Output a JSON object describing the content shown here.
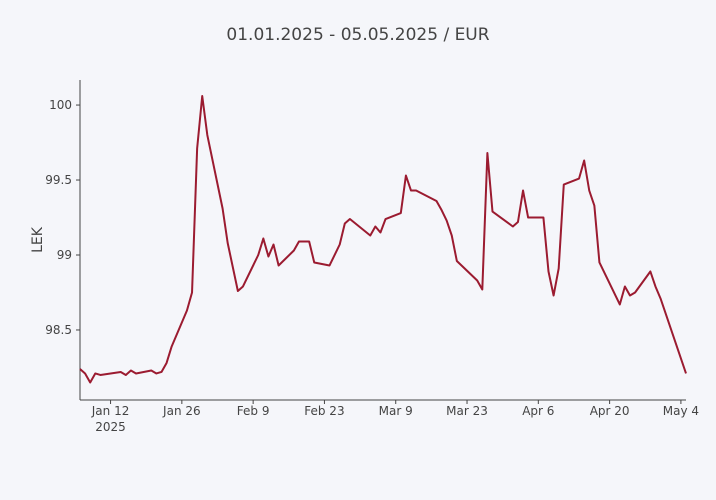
{
  "chart_data": {
    "type": "line",
    "title": "01.01.2025 - 05.05.2025 / EUR",
    "y_label": "LEK",
    "x_year_label": "2025",
    "xlim": [
      "2025-01-06",
      "2025-05-05"
    ],
    "xticks": [
      {
        "value": "2025-01-12",
        "label": "Jan 12"
      },
      {
        "value": "2025-01-26",
        "label": "Jan 26"
      },
      {
        "value": "2025-02-09",
        "label": "Feb 9"
      },
      {
        "value": "2025-02-23",
        "label": "Feb 23"
      },
      {
        "value": "2025-03-09",
        "label": "Mar 9"
      },
      {
        "value": "2025-03-23",
        "label": "Mar 23"
      },
      {
        "value": "2025-04-06",
        "label": "Apr 6"
      },
      {
        "value": "2025-04-20",
        "label": "Apr 20"
      },
      {
        "value": "2025-05-04",
        "label": "May 4"
      }
    ],
    "ylim": [
      98.033,
      100.167
    ],
    "yticks": [
      98.5,
      99,
      99.5,
      100
    ],
    "grid": false,
    "x": [
      "2025-01-06",
      "2025-01-07",
      "2025-01-08",
      "2025-01-09",
      "2025-01-10",
      "2025-01-12",
      "2025-01-14",
      "2025-01-15",
      "2025-01-16",
      "2025-01-17",
      "2025-01-20",
      "2025-01-21",
      "2025-01-22",
      "2025-01-23",
      "2025-01-24",
      "2025-01-27",
      "2025-01-28",
      "2025-01-29",
      "2025-01-30",
      "2025-01-31",
      "2025-02-03",
      "2025-02-04",
      "2025-02-06",
      "2025-02-07",
      "2025-02-10",
      "2025-02-11",
      "2025-02-12",
      "2025-02-13",
      "2025-02-14",
      "2025-02-17",
      "2025-02-18",
      "2025-02-20",
      "2025-02-21",
      "2025-02-24",
      "2025-02-26",
      "2025-02-27",
      "2025-02-28",
      "2025-03-04",
      "2025-03-05",
      "2025-03-06",
      "2025-03-07",
      "2025-03-10",
      "2025-03-11",
      "2025-03-12",
      "2025-03-13",
      "2025-03-17",
      "2025-03-18",
      "2025-03-19",
      "2025-03-20",
      "2025-03-21",
      "2025-03-25",
      "2025-03-26",
      "2025-03-27",
      "2025-03-28",
      "2025-04-01",
      "2025-04-02",
      "2025-04-03",
      "2025-04-04",
      "2025-04-07",
      "2025-04-08",
      "2025-04-09",
      "2025-04-10",
      "2025-04-11",
      "2025-04-14",
      "2025-04-15",
      "2025-04-16",
      "2025-04-17",
      "2025-04-18",
      "2025-04-22",
      "2025-04-23",
      "2025-04-24",
      "2025-04-25",
      "2025-04-28",
      "2025-04-29",
      "2025-04-30",
      "2025-05-05"
    ],
    "series": [
      {
        "name": "EUR",
        "color": "#9b1b30",
        "values": [
          98.24,
          98.21,
          98.15,
          98.21,
          98.2,
          98.21,
          98.22,
          98.2,
          98.23,
          98.21,
          98.23,
          98.21,
          98.22,
          98.28,
          98.39,
          98.63,
          98.75,
          99.71,
          100.06,
          99.8,
          99.31,
          99.08,
          98.76,
          98.79,
          99.0,
          99.11,
          98.99,
          99.07,
          98.93,
          99.03,
          99.09,
          99.09,
          98.95,
          98.93,
          99.07,
          99.21,
          99.24,
          99.13,
          99.19,
          99.15,
          99.24,
          99.28,
          99.53,
          99.43,
          99.43,
          99.36,
          99.3,
          99.23,
          99.13,
          98.96,
          98.83,
          98.77,
          99.68,
          99.29,
          99.19,
          99.22,
          99.43,
          99.25,
          99.25,
          98.89,
          98.73,
          98.91,
          99.47,
          99.51,
          99.63,
          99.43,
          99.33,
          98.95,
          98.67,
          98.79,
          98.73,
          98.75,
          98.89,
          98.79,
          98.71,
          98.21
        ]
      }
    ]
  }
}
